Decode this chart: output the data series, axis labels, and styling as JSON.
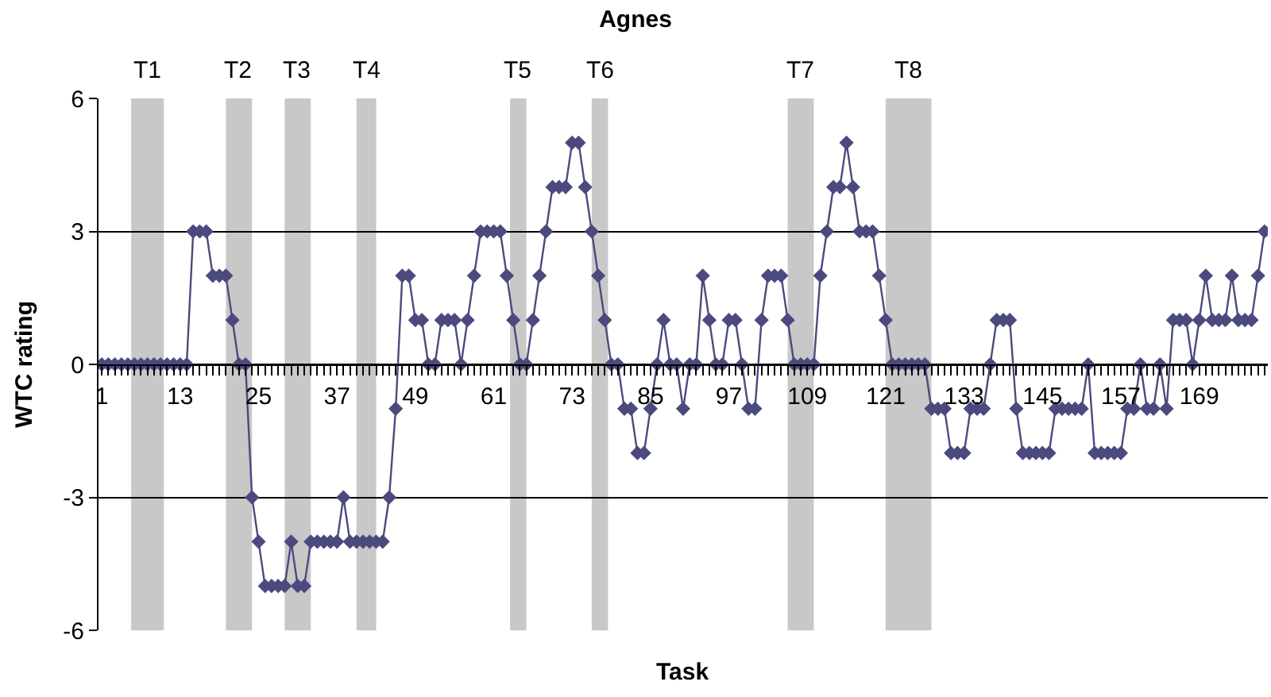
{
  "chart_data": {
    "type": "line",
    "title": "Agnes",
    "xlabel": "Task",
    "ylabel": "WTC rating",
    "x": [
      1,
      2,
      3,
      4,
      5,
      6,
      7,
      8,
      9,
      10,
      11,
      12,
      13,
      14,
      15,
      16,
      17,
      18,
      19,
      20,
      21,
      22,
      23,
      24,
      25,
      26,
      27,
      28,
      29,
      30,
      31,
      32,
      33,
      34,
      35,
      36,
      37,
      38,
      39,
      40,
      41,
      42,
      43,
      44,
      45,
      46,
      47,
      48,
      49,
      50,
      51,
      52,
      53,
      54,
      55,
      56,
      57,
      58,
      59,
      60,
      61,
      62,
      63,
      64,
      65,
      66,
      67,
      68,
      69,
      70,
      71,
      72,
      73,
      74,
      75,
      76,
      77,
      78,
      79,
      80,
      81,
      82,
      83,
      84,
      85,
      86,
      87,
      88,
      89,
      90,
      91,
      92,
      93,
      94,
      95,
      96,
      97,
      98,
      99,
      100,
      101,
      102,
      103,
      104,
      105,
      106,
      107,
      108,
      109,
      110,
      111,
      112,
      113,
      114,
      115,
      116,
      117,
      118,
      119,
      120,
      121,
      122,
      123,
      124,
      125,
      126,
      127,
      128,
      129,
      130,
      131,
      132,
      133,
      134,
      135,
      136,
      137,
      138,
      139,
      140,
      141,
      142,
      143,
      144,
      145,
      146,
      147,
      148,
      149,
      150,
      151,
      152,
      153,
      154,
      155,
      156,
      157,
      158,
      159,
      160,
      161,
      162,
      163,
      164,
      165,
      166,
      167,
      168,
      169,
      170,
      171,
      172,
      173,
      174,
      175,
      176,
      177,
      178,
      179
    ],
    "series": [
      {
        "color": "#4b4a7e",
        "values": [
          0,
          0,
          0,
          0,
          0,
          0,
          0,
          0,
          0,
          0,
          0,
          0,
          0,
          0,
          3,
          3,
          3,
          2,
          2,
          2,
          1,
          0,
          0,
          -3,
          -4,
          -5,
          -5,
          -5,
          -5,
          -4,
          -5,
          -5,
          -4,
          -4,
          -4,
          -4,
          -4,
          -3,
          -4,
          -4,
          -4,
          -4,
          -4,
          -4,
          -3,
          -1,
          2,
          2,
          1,
          1,
          0,
          0,
          1,
          1,
          1,
          0,
          1,
          2,
          3,
          3,
          3,
          3,
          2,
          1,
          0,
          0,
          1,
          2,
          3,
          4,
          4,
          4,
          5,
          5,
          4,
          3,
          2,
          1,
          0,
          0,
          -1,
          -1,
          -2,
          -2,
          -1,
          0,
          1,
          0,
          0,
          -1,
          0,
          0,
          2,
          1,
          0,
          0,
          1,
          1,
          0,
          -1,
          -1,
          1,
          2,
          2,
          2,
          1,
          0,
          0,
          0,
          0,
          2,
          3,
          4,
          4,
          5,
          4,
          3,
          3,
          3,
          2,
          1,
          0,
          0,
          0,
          0,
          0,
          0,
          -1,
          -1,
          -1,
          -2,
          -2,
          -2,
          -1,
          -1,
          -1,
          0,
          1,
          1,
          1,
          -1,
          -2,
          -2,
          -2,
          -2,
          -2,
          -1,
          -1,
          -1,
          -1,
          -1,
          0,
          -2,
          -2,
          -2,
          -2,
          -2,
          -1,
          -1,
          0,
          -1,
          -1,
          0,
          -1,
          1,
          1,
          1,
          0,
          1,
          2,
          1,
          1,
          1,
          2,
          1,
          1,
          1,
          2,
          3
        ]
      }
    ],
    "xlim": [
      0.5,
      179.5
    ],
    "xticks": [
      1,
      13,
      25,
      37,
      49,
      61,
      73,
      85,
      97,
      109,
      121,
      133,
      145,
      157,
      169
    ],
    "ylim": [
      -6,
      6
    ],
    "yticks": [
      -6,
      -3,
      0,
      3,
      6
    ],
    "grid": "y",
    "marker": "diamond",
    "line_style": "solid",
    "bands": [
      {
        "axis": "x",
        "from": 5.5,
        "to": 10.5,
        "label": "T1",
        "color": "#c8c8c8"
      },
      {
        "axis": "x",
        "from": 20,
        "to": 24,
        "label": "T2",
        "color": "#c8c8c8"
      },
      {
        "axis": "x",
        "from": 29,
        "to": 33,
        "label": "T3",
        "color": "#c8c8c8"
      },
      {
        "axis": "x",
        "from": 40,
        "to": 43,
        "label": "T4",
        "color": "#c8c8c8"
      },
      {
        "axis": "x",
        "from": 63.5,
        "to": 66,
        "label": "T5",
        "color": "#c8c8c8"
      },
      {
        "axis": "x",
        "from": 76,
        "to": 78.5,
        "label": "T6",
        "color": "#c8c8c8"
      },
      {
        "axis": "x",
        "from": 106,
        "to": 110,
        "label": "T7",
        "color": "#c8c8c8"
      },
      {
        "axis": "x",
        "from": 121,
        "to": 128,
        "label": "T8",
        "color": "#c8c8c8"
      }
    ]
  }
}
